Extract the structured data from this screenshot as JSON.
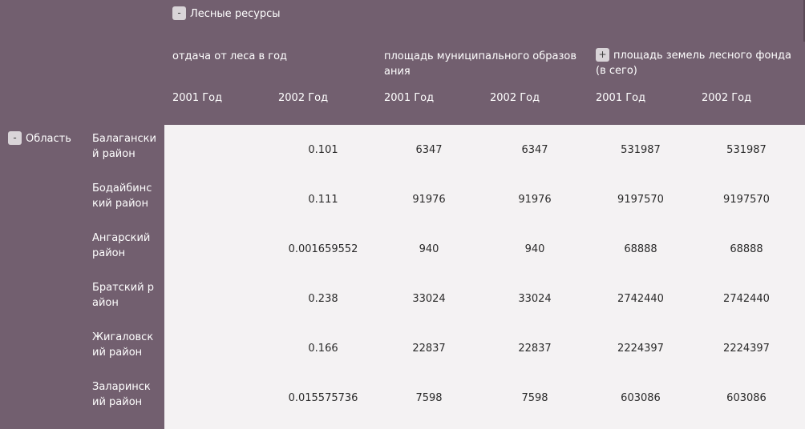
{
  "header": {
    "group_label": "Лесные ресурсы",
    "group_toggle": "-",
    "measures": [
      {
        "label": "отдача от леса в год",
        "toggle": ""
      },
      {
        "label": "площадь муниципального образования",
        "toggle": ""
      },
      {
        "label": "площадь земель лесного фонда (в сего)",
        "toggle": "+"
      }
    ],
    "years": [
      "2001 Год",
      "2002 Год",
      "2001 Год",
      "2002 Год",
      "2001 Год",
      "2002 Год"
    ]
  },
  "region": {
    "label": "Область",
    "toggle": "-"
  },
  "rows": [
    {
      "name": "Балаганский район",
      "values": [
        "",
        "0.101",
        "6347",
        "6347",
        "531987",
        "531987"
      ]
    },
    {
      "name": "Бодайбинский район",
      "values": [
        "",
        "0.111",
        "91976",
        "91976",
        "9197570",
        "9197570"
      ]
    },
    {
      "name": "Ангарский район",
      "values": [
        "",
        "0.001659552",
        "940",
        "940",
        "68888",
        "68888"
      ]
    },
    {
      "name": "Братский район",
      "values": [
        "",
        "0.238",
        "33024",
        "33024",
        "2742440",
        "2742440"
      ]
    },
    {
      "name": "Жигаловский район",
      "values": [
        "",
        "0.166",
        "22837",
        "22837",
        "2224397",
        "2224397"
      ]
    },
    {
      "name": "Заларинский район",
      "values": [
        "",
        "0.015575736",
        "7598",
        "7598",
        "603086",
        "603086"
      ]
    }
  ]
}
